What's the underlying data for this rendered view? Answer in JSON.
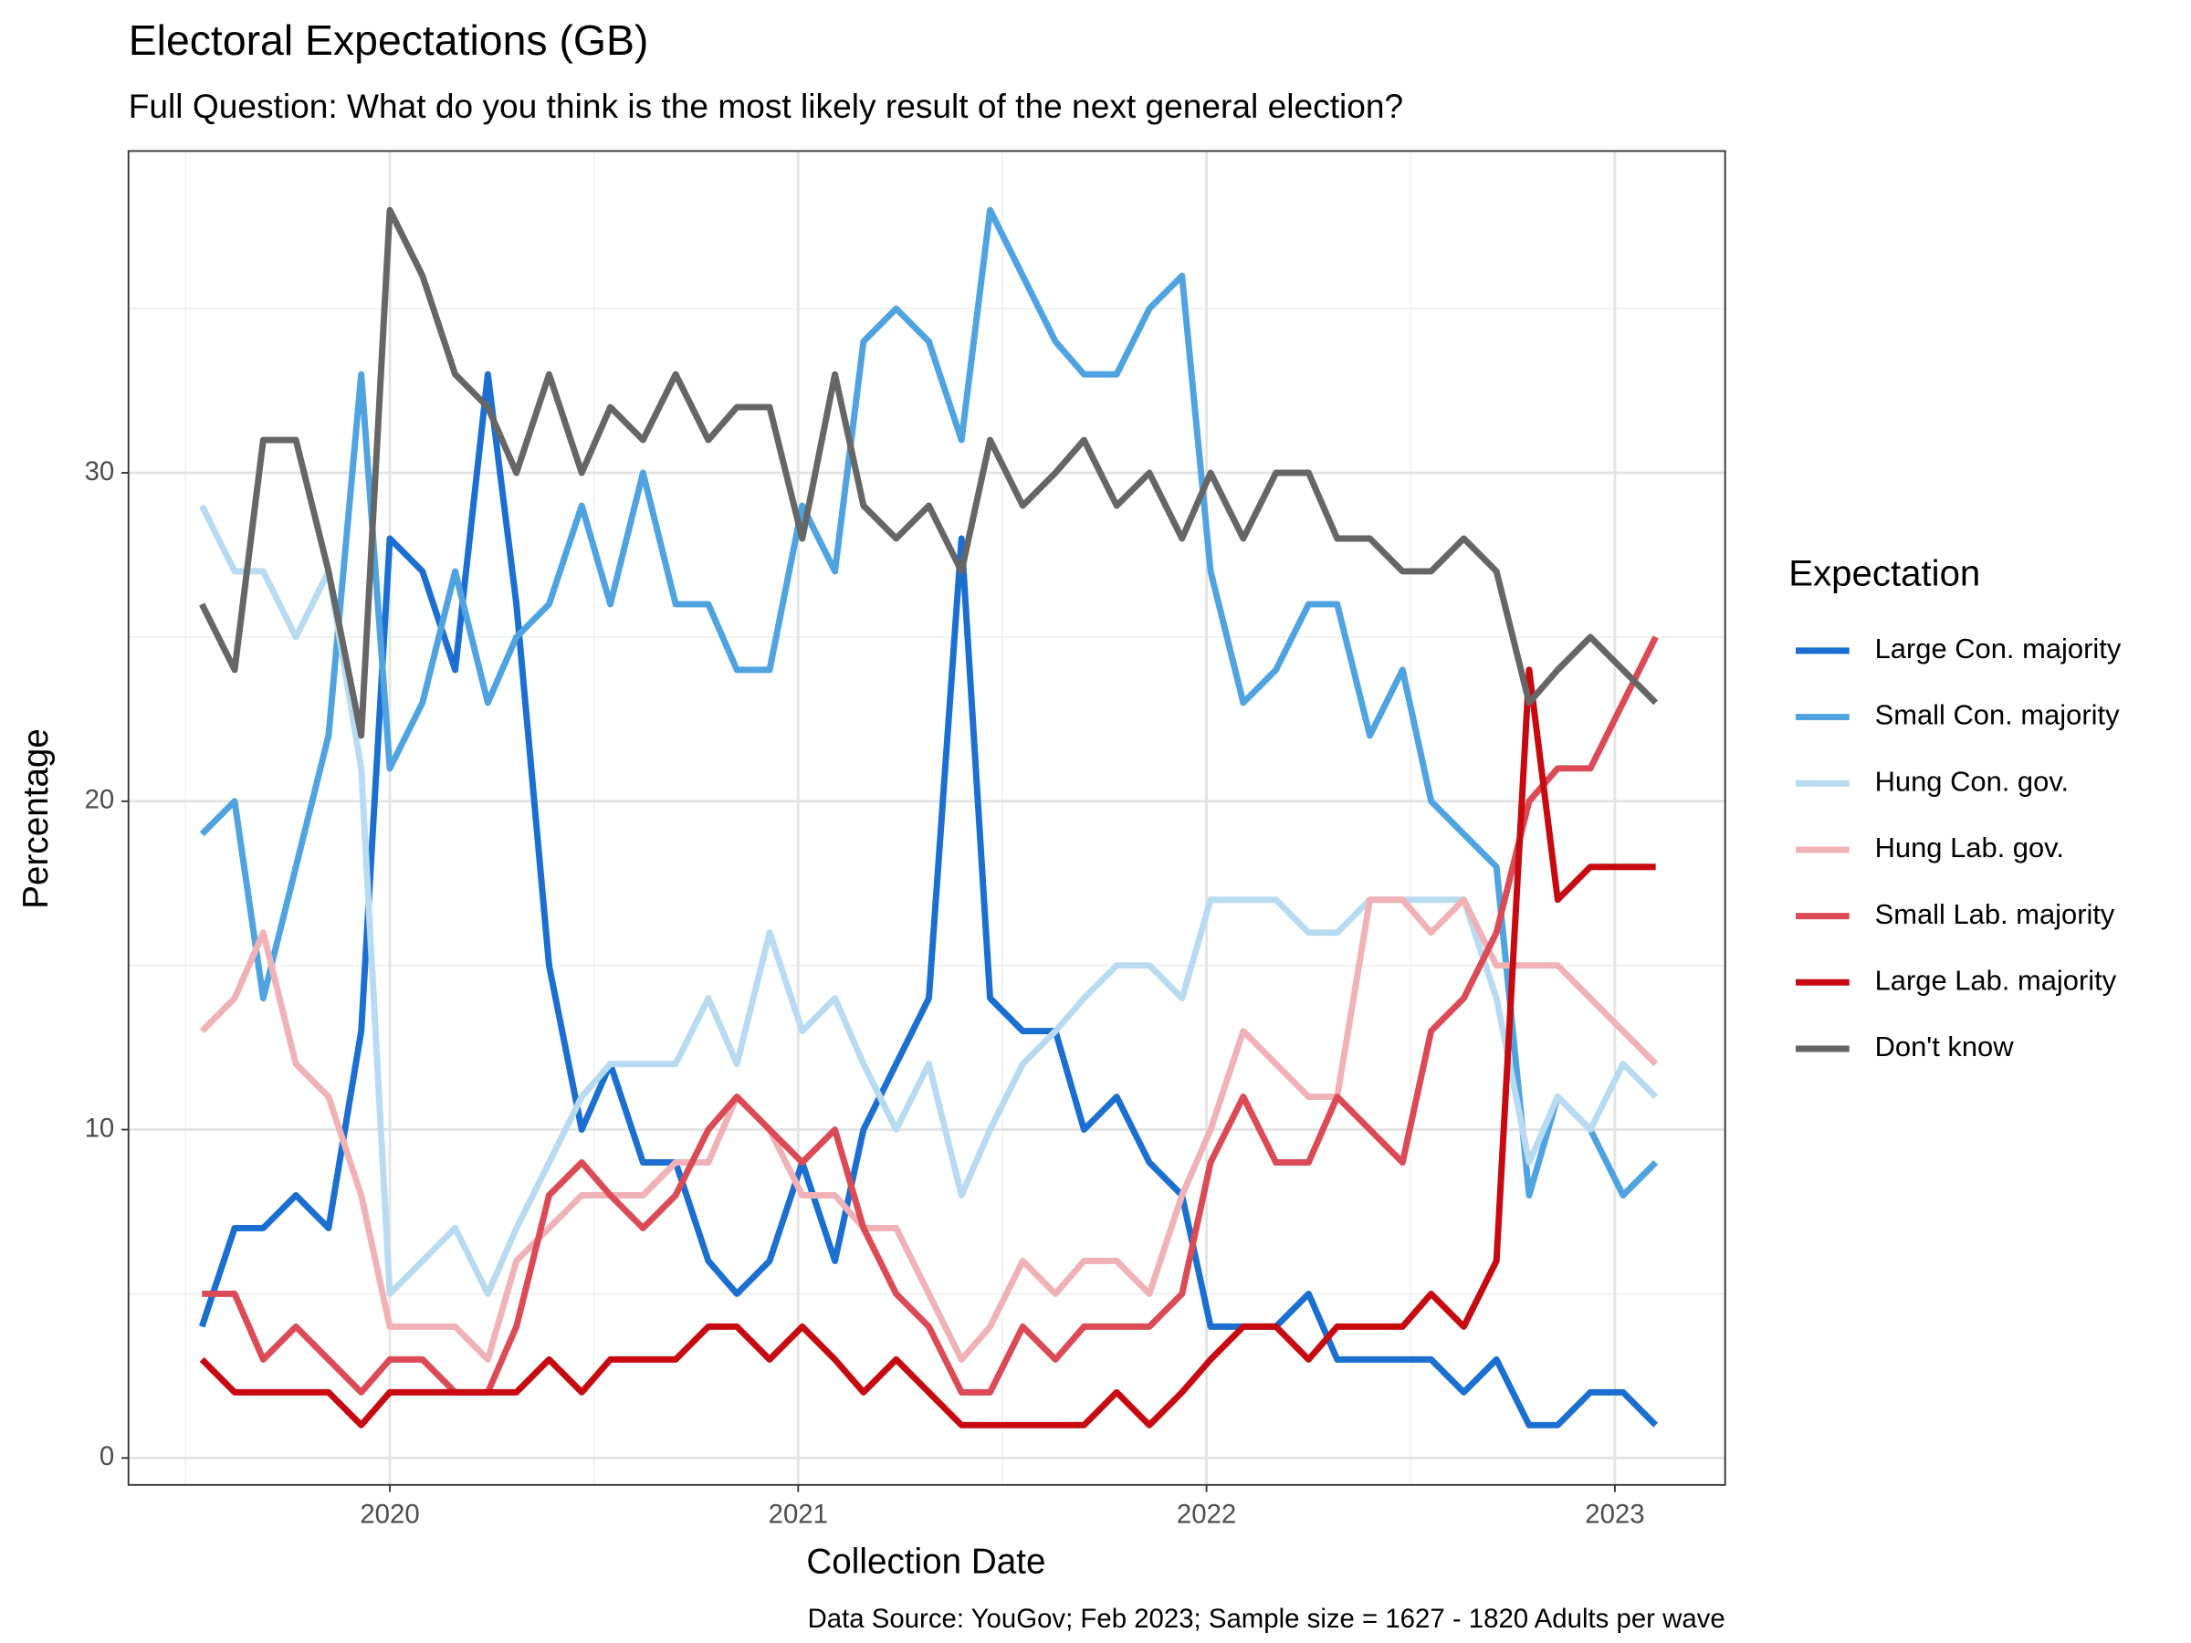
{
  "chart_data": {
    "type": "line",
    "title": "Electoral Expectations (GB)",
    "subtitle": "Full Question: What do you think is the most likely result of the next general election?",
    "x_label": "Collection Date",
    "y_label": "Percentage",
    "caption": "Data Source: YouGov; Feb 2023; Sample size = 1627 - 1820 Adults per wave",
    "legend_title": "Expectation",
    "legend_position": "right",
    "grid": true,
    "x": [
      2019.54,
      2019.62,
      2019.69,
      2019.77,
      2019.85,
      2019.93,
      2020.0,
      2020.08,
      2020.16,
      2020.24,
      2020.31,
      2020.39,
      2020.47,
      2020.54,
      2020.62,
      2020.7,
      2020.78,
      2020.85,
      2020.93,
      2021.01,
      2021.09,
      2021.16,
      2021.24,
      2021.32,
      2021.4,
      2021.47,
      2021.55,
      2021.63,
      2021.7,
      2021.78,
      2021.86,
      2021.94,
      2022.01,
      2022.09,
      2022.17,
      2022.25,
      2022.32,
      2022.4,
      2022.48,
      2022.55,
      2022.63,
      2022.71,
      2022.79,
      2022.86,
      2022.94,
      2023.02,
      2023.1
    ],
    "xlim": [
      2019.36,
      2023.27
    ],
    "xticks": [
      2020,
      2021,
      2022,
      2023
    ],
    "x_minor_ticks": [
      2019.5,
      2020.5,
      2021.5,
      2022.5
    ],
    "ylim": [
      -0.82,
      39.8
    ],
    "yticks": [
      0,
      10,
      20,
      30
    ],
    "y_minor_ticks": [
      5,
      15,
      25,
      35
    ],
    "series": [
      {
        "name": "Large Con. majority",
        "color": "#1a6fd1",
        "values": [
          4,
          7,
          7,
          8,
          7,
          13,
          28,
          27,
          24,
          33,
          26,
          15,
          10,
          12,
          9,
          9,
          6,
          5,
          6,
          9,
          6,
          10,
          12,
          14,
          28,
          14,
          13,
          13,
          10,
          11,
          9,
          8,
          4,
          4,
          4,
          5,
          3,
          3,
          3,
          3,
          2,
          3,
          1,
          1,
          2,
          2,
          1
        ]
      },
      {
        "name": "Small Con. majority",
        "color": "#4fa3e0",
        "values": [
          19,
          20,
          14,
          18,
          22,
          33,
          21,
          23,
          27,
          23,
          25,
          26,
          29,
          26,
          30,
          26,
          26,
          24,
          24,
          29,
          27,
          34,
          35,
          34,
          31,
          38,
          36,
          34,
          33,
          33,
          35,
          36,
          27,
          23,
          24,
          26,
          26,
          22,
          24,
          20,
          19,
          18,
          8,
          11,
          10,
          8,
          9
        ]
      },
      {
        "name": "Hung Con. gov.",
        "color": "#b8dbf2",
        "values": [
          29,
          27,
          27,
          25,
          27,
          21,
          5,
          6,
          7,
          5,
          7,
          9,
          11,
          12,
          12,
          12,
          14,
          12,
          16,
          13,
          14,
          12,
          10,
          12,
          8,
          10,
          12,
          13,
          14,
          15,
          15,
          14,
          17,
          17,
          17,
          16,
          16,
          17,
          17,
          17,
          17,
          14,
          9,
          11,
          10,
          12,
          11
        ]
      },
      {
        "name": "Hung Lab. gov.",
        "color": "#f0b2b6",
        "values": [
          13,
          14,
          16,
          12,
          11,
          8,
          4,
          4,
          4,
          3,
          6,
          7,
          8,
          8,
          8,
          9,
          9,
          11,
          10,
          8,
          8,
          7,
          7,
          5,
          3,
          4,
          6,
          5,
          6,
          6,
          5,
          8,
          10,
          13,
          12,
          11,
          11,
          17,
          17,
          16,
          17,
          15,
          15,
          15,
          14,
          13,
          12
        ]
      },
      {
        "name": "Small Lab. majority",
        "color": "#db4a55",
        "values": [
          5,
          5,
          3,
          4,
          3,
          2,
          3,
          3,
          2,
          2,
          4,
          8,
          9,
          8,
          7,
          8,
          10,
          11,
          10,
          9,
          10,
          7,
          5,
          4,
          2,
          2,
          4,
          3,
          4,
          4,
          4,
          5,
          9,
          11,
          9,
          9,
          11,
          10,
          9,
          13,
          14,
          16,
          20,
          21,
          21,
          23,
          25
        ]
      },
      {
        "name": "Large Lab. majority",
        "color": "#c80a10",
        "values": [
          3,
          2,
          2,
          2,
          2,
          1,
          2,
          2,
          2,
          2,
          2,
          3,
          2,
          3,
          3,
          3,
          4,
          4,
          3,
          4,
          3,
          2,
          3,
          2,
          1,
          1,
          1,
          1,
          1,
          2,
          1,
          2,
          3,
          4,
          4,
          3,
          4,
          4,
          4,
          5,
          4,
          6,
          24,
          17,
          18,
          18,
          18
        ]
      },
      {
        "name": "Don't know",
        "color": "#666666",
        "values": [
          26,
          24,
          31,
          31,
          27,
          22,
          38,
          36,
          33,
          32,
          30,
          33,
          30,
          32,
          31,
          33,
          31,
          32,
          32,
          28,
          33,
          29,
          28,
          29,
          27,
          31,
          29,
          30,
          31,
          29,
          30,
          28,
          30,
          28,
          30,
          30,
          28,
          28,
          27,
          27,
          28,
          27,
          23,
          24,
          25,
          24,
          23
        ]
      }
    ]
  }
}
